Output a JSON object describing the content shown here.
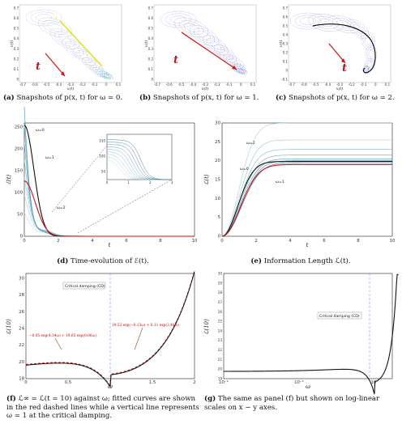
{
  "panels": {
    "a": {
      "caption_tag": "(a)",
      "caption_text": "Snapshots of p(x, t) for ω = 0.",
      "xlabel": "x(t)",
      "ylabel": "v(t)",
      "arrow_label": "t",
      "xticks": [
        "-0.7",
        "-0.6",
        "-0.5",
        "-0.4",
        "-0.3",
        "-0.2",
        "-0.1",
        "0",
        "0.1"
      ],
      "yticks": [
        "0",
        "0.1",
        "0.2",
        "0.3",
        "0.4",
        "0.5",
        "0.6",
        "0.7"
      ]
    },
    "b": {
      "caption_tag": "(b)",
      "caption_text": "Snapshots of p(x, t) for ω = 1.",
      "xlabel": "x(t)",
      "ylabel": "v(t)",
      "arrow_label": "t",
      "xticks": [
        "-0.7",
        "-0.6",
        "-0.5",
        "-0.4",
        "-0.3",
        "-0.2",
        "-0.1",
        "0",
        "0.1"
      ],
      "yticks": [
        "0",
        "0.1",
        "0.2",
        "0.3",
        "0.4",
        "0.5",
        "0.6",
        "0.7"
      ]
    },
    "c": {
      "caption_tag": "(c)",
      "caption_text": "Snapshots of p(x, t) for ω = 2.",
      "xlabel": "x(t)",
      "ylabel": "v(t)",
      "arrow_label": "t",
      "xticks": [
        "-0.7",
        "-0.6",
        "-0.5",
        "-0.4",
        "-0.3",
        "-0.2",
        "-0.1",
        "0",
        "0.1"
      ],
      "yticks": [
        "-0.1",
        "0",
        "0.1",
        "0.2",
        "0.3",
        "0.4",
        "0.5",
        "0.6",
        "0.7"
      ]
    },
    "d": {
      "caption_tag": "(d)",
      "caption_text": "Time-evolution of ℰ(t).",
      "xlabel": "t",
      "ylabel": "ℰ(t)",
      "xticks": [
        "0",
        "2",
        "4",
        "6",
        "8",
        "10"
      ],
      "yticks": [
        "0",
        "50",
        "100",
        "150",
        "200",
        "250"
      ],
      "labels": [
        "ω=0",
        "ω=1",
        "ω=2"
      ],
      "inset_xticks": [
        "0",
        "1",
        "2",
        "3"
      ],
      "inset_yticks": [
        "50",
        "100",
        "150"
      ]
    },
    "e": {
      "caption_tag": "(e)",
      "caption_text": "Information Length ℒ(t).",
      "xlabel": "t",
      "ylabel": "ℒ(t)",
      "xticks": [
        "0",
        "2",
        "4",
        "6",
        "8",
        "10"
      ],
      "yticks": [
        "0",
        "5",
        "10",
        "15",
        "20",
        "25",
        "30"
      ],
      "labels": [
        "ω=2",
        "ω=0",
        "ω=1"
      ]
    },
    "f": {
      "caption_tag": "(f)",
      "caption_text": "ℒ∞ = ℒ(t = 10) against ω; fitted curves are shown in the red dashed lines while a vertical line represents ω = 1 at the critical damping.",
      "xlabel": "ω",
      "ylabel": "ℒ(10)",
      "xticks": [
        "0",
        "0.5",
        "1",
        "1.5",
        "2"
      ],
      "yticks": [
        "18",
        "20",
        "22",
        "24",
        "26",
        "28",
        "30"
      ],
      "cd_label": "Critical damping (CD)",
      "fit_left": "−0.05 exp(4.34ω) + 19.65 exp(0.06ω)",
      "fit_right": "19.52 exp(−0.13ω) + 0.11 exp(2.48ω)"
    },
    "g": {
      "caption_tag": "(g)",
      "caption_text": "The same as panel (f) but shown on log-linear scales on x − y axes.",
      "xlabel": "ω",
      "ylabel": "ℒ(10)",
      "xticks": [
        "10⁻²",
        "10⁻¹",
        "10⁰"
      ],
      "yticks": [
        "19",
        "20",
        "21",
        "22",
        "23",
        "24",
        "25",
        "26",
        "27",
        "28",
        "29",
        "30"
      ],
      "cd_label": "Critical damping (CD)"
    }
  },
  "colors": {
    "red": "#cc1111",
    "blue": "#7a8fd6",
    "teal": "#5aa0b8",
    "dark": "#111111",
    "cd": "#8c8cf0"
  }
}
